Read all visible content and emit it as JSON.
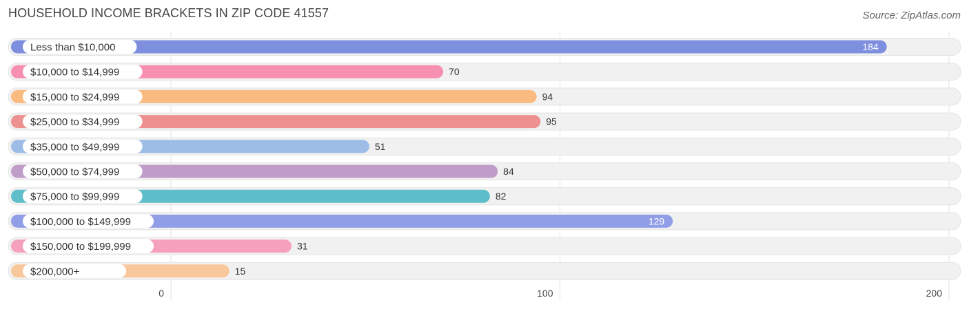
{
  "header": {
    "title": "HOUSEHOLD INCOME BRACKETS IN ZIP CODE 41557",
    "source": "Source: ZipAtlas.com"
  },
  "chart_data": {
    "type": "bar",
    "orientation": "horizontal",
    "title": "HOUSEHOLD INCOME BRACKETS IN ZIP CODE 41557",
    "xlabel": "",
    "ylabel": "",
    "xlim": [
      0,
      200
    ],
    "ticks": [
      0,
      100,
      200
    ],
    "grid": true,
    "categories": [
      "Less than $10,000",
      "$10,000 to $14,999",
      "$15,000 to $24,999",
      "$25,000 to $34,999",
      "$35,000 to $49,999",
      "$50,000 to $74,999",
      "$75,000 to $99,999",
      "$100,000 to $149,999",
      "$150,000 to $199,999",
      "$200,000+"
    ],
    "values": [
      184,
      70,
      94,
      95,
      51,
      84,
      82,
      129,
      31,
      15
    ],
    "colors": [
      "#7f8fdf",
      "#f68fb0",
      "#f9bb80",
      "#ec9190",
      "#9dbde7",
      "#c09cc8",
      "#5ebec9",
      "#8f9ee6",
      "#f5a0bd",
      "#f9c79c"
    ]
  }
}
